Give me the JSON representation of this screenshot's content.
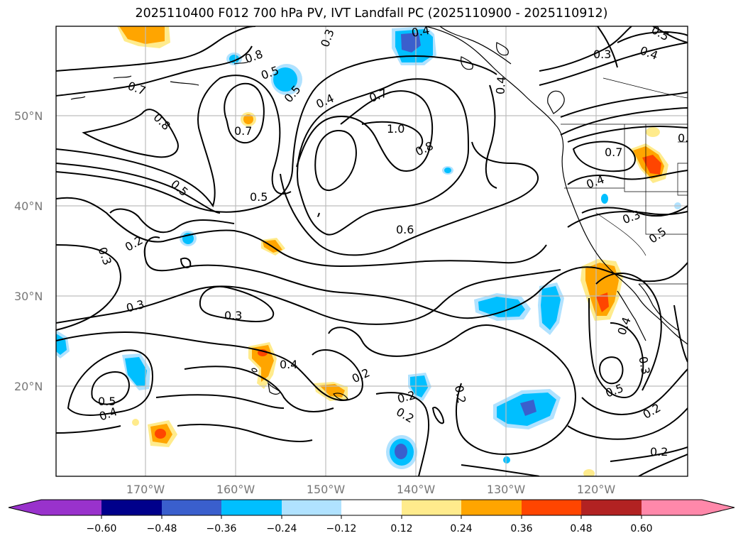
{
  "title": "2025110400 F012 700 hPa PV, IVT Landfall PC (2025110900 - 2025110912)",
  "lat_labels": [
    "50°N",
    "40°N",
    "30°N",
    "20°N"
  ],
  "lon_labels": [
    "170°W",
    "160°W",
    "150°W",
    "140°W",
    "130°W",
    "120°W"
  ],
  "contour_labels": [
    "0.7",
    "0.8",
    "0.5",
    "0.2",
    "0.3",
    "0.3",
    "0.5",
    "0.4",
    "0.7",
    "0.8",
    "0.5",
    "0.5",
    "0.4",
    "0.7",
    "1.0",
    "0.8",
    "0.6",
    "0.3",
    "0.4",
    "0.2",
    "0.2",
    "0.2",
    "0.2",
    "0.4",
    "0.3",
    "0.7",
    "0.4",
    "0.3",
    "0.5",
    "0.4",
    "0.3",
    "0.5",
    "0.2",
    "0.2",
    "0.8",
    "0.4",
    "0.5",
    "0.4",
    "0.5",
    "0.3"
  ],
  "colorbar": {
    "ticks": [
      "−0.60",
      "−0.48",
      "−0.36",
      "−0.24",
      "−0.12",
      "0.12",
      "0.24",
      "0.36",
      "0.48",
      "0.60"
    ],
    "colors": [
      "#9932cc",
      "#00008b",
      "#3a5fcd",
      "#00bfff",
      "#b0e2ff",
      "#ffffff",
      "#ffeb8c",
      "#ffa500",
      "#ff4500",
      "#b22222",
      "#ff88aa",
      "#ff88aa"
    ],
    "min_color": "#9932cc",
    "max_color": "#ff88aa"
  },
  "shading_colors": {
    "neg_light": "#b0e2ff",
    "neg_mid": "#00bfff",
    "neg_dark": "#3a5fcd",
    "pos_light": "#ffeb8c",
    "pos_mid": "#ffa500",
    "pos_dark": "#ff4500"
  }
}
